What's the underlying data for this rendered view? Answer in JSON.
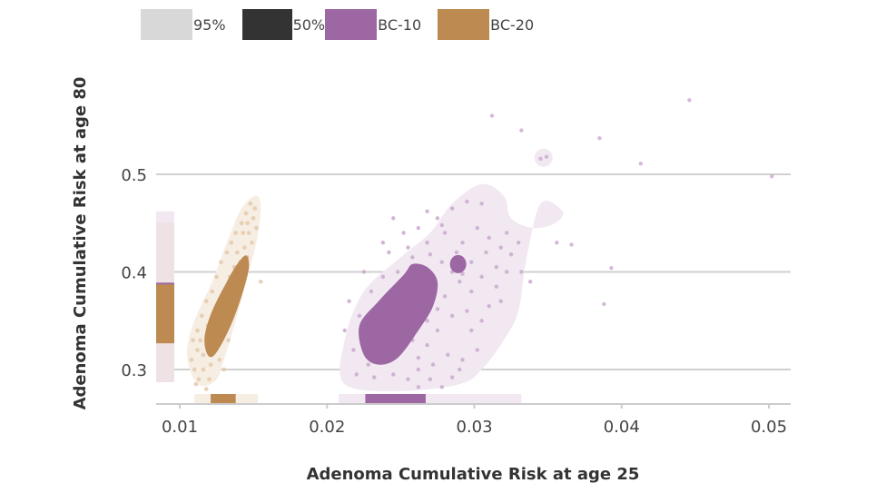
{
  "legend": [
    {
      "label": "95%",
      "color": "#d8d8d8"
    },
    {
      "label": "50%",
      "color": "#333333"
    },
    {
      "label": "BC-10",
      "color": "#9c67a2"
    },
    {
      "label": "BC-20",
      "color": "#bd8a52"
    }
  ],
  "colors": {
    "bc10": "#9c67a2",
    "bc10_light": "#f1e8f2",
    "bc10_point": "#c9a9cd",
    "bc20": "#bd8a52",
    "bc20_light": "#f6ede3",
    "bc20_point": "#e3c9aa",
    "grid": "#d0d0d0",
    "axis": "#cccccc"
  },
  "chart_data": {
    "type": "scatter",
    "title": "",
    "xlabel": "Adenoma Cumulative Risk at age 25",
    "ylabel": "Adenoma Cumulative Risk at age 80",
    "xlim": [
      0.0088,
      0.0514
    ],
    "ylim": [
      0.265,
      0.54
    ],
    "x_ticks": [
      0.01,
      0.02,
      0.03,
      0.04,
      0.05
    ],
    "x_tick_labels": [
      "0.01",
      "0.02",
      "0.03",
      "0.04",
      "0.05"
    ],
    "y_ticks": [
      0.3,
      0.4,
      0.5
    ],
    "y_tick_labels": [
      "0.3",
      "0.4",
      "0.5"
    ],
    "grid": "horizontal",
    "legend_position": "top",
    "series": [
      {
        "name": "BC-10",
        "density_95_region": [
          [
            0.0212,
            0.285
          ],
          [
            0.0212,
            0.33
          ],
          [
            0.0225,
            0.38
          ],
          [
            0.025,
            0.415
          ],
          [
            0.027,
            0.44
          ],
          [
            0.0285,
            0.47
          ],
          [
            0.0305,
            0.49
          ],
          [
            0.032,
            0.478
          ],
          [
            0.0325,
            0.455
          ],
          [
            0.034,
            0.445
          ],
          [
            0.0355,
            0.45
          ],
          [
            0.036,
            0.462
          ],
          [
            0.0345,
            0.47
          ],
          [
            0.0335,
            0.41
          ],
          [
            0.033,
            0.36
          ],
          [
            0.032,
            0.33
          ],
          [
            0.0305,
            0.3
          ],
          [
            0.029,
            0.285
          ],
          [
            0.025,
            0.278
          ]
        ],
        "density_50_region": [
          [
            0.0225,
            0.315
          ],
          [
            0.0222,
            0.345
          ],
          [
            0.0235,
            0.37
          ],
          [
            0.0252,
            0.397
          ],
          [
            0.0258,
            0.408
          ],
          [
            0.0268,
            0.405
          ],
          [
            0.0275,
            0.39
          ],
          [
            0.0272,
            0.365
          ],
          [
            0.0262,
            0.34
          ],
          [
            0.0248,
            0.312
          ],
          [
            0.0235,
            0.305
          ]
        ],
        "density_50_island": {
          "cx": 0.0289,
          "cy": 0.408,
          "r": 0.0006
        },
        "marginal_x_95": [
          0.0208,
          0.0332
        ],
        "marginal_x_50": [
          0.0226,
          0.0267
        ],
        "marginal_y_95": [
          0.287,
          0.462
        ],
        "marginal_y_50": [
          0.327,
          0.389
        ],
        "outliers": [
          [
            0.0349,
            0.518
          ],
          [
            0.0345,
            0.516
          ],
          [
            0.0413,
            0.511
          ],
          [
            0.0385,
            0.537
          ],
          [
            0.0312,
            0.56
          ],
          [
            0.0332,
            0.545
          ],
          [
            0.0446,
            0.576
          ],
          [
            0.0393,
            0.404
          ],
          [
            0.0388,
            0.367
          ],
          [
            0.0356,
            0.43
          ],
          [
            0.0366,
            0.428
          ],
          [
            0.0502,
            0.498
          ]
        ],
        "points": [
          [
            0.0245,
            0.455
          ],
          [
            0.0262,
            0.445
          ],
          [
            0.0275,
            0.455
          ],
          [
            0.0285,
            0.465
          ],
          [
            0.0295,
            0.472
          ],
          [
            0.0305,
            0.47
          ],
          [
            0.028,
            0.44
          ],
          [
            0.0268,
            0.43
          ],
          [
            0.0255,
            0.425
          ],
          [
            0.0242,
            0.42
          ],
          [
            0.0292,
            0.43
          ],
          [
            0.0302,
            0.445
          ],
          [
            0.031,
            0.435
          ],
          [
            0.0318,
            0.425
          ],
          [
            0.0325,
            0.418
          ],
          [
            0.0315,
            0.405
          ],
          [
            0.0305,
            0.395
          ],
          [
            0.0298,
            0.38
          ],
          [
            0.029,
            0.39
          ],
          [
            0.028,
            0.375
          ],
          [
            0.0275,
            0.362
          ],
          [
            0.0285,
            0.355
          ],
          [
            0.0295,
            0.36
          ],
          [
            0.031,
            0.365
          ],
          [
            0.0318,
            0.37
          ],
          [
            0.0275,
            0.34
          ],
          [
            0.0268,
            0.325
          ],
          [
            0.0282,
            0.315
          ],
          [
            0.0292,
            0.31
          ],
          [
            0.0302,
            0.32
          ],
          [
            0.0262,
            0.3
          ],
          [
            0.0255,
            0.29
          ],
          [
            0.027,
            0.29
          ],
          [
            0.0285,
            0.292
          ],
          [
            0.0245,
            0.295
          ],
          [
            0.0232,
            0.292
          ],
          [
            0.022,
            0.295
          ],
          [
            0.0218,
            0.32
          ],
          [
            0.0222,
            0.355
          ],
          [
            0.023,
            0.38
          ],
          [
            0.0238,
            0.395
          ],
          [
            0.0248,
            0.4
          ],
          [
            0.0258,
            0.415
          ],
          [
            0.027,
            0.418
          ],
          [
            0.0278,
            0.41
          ],
          [
            0.0288,
            0.42
          ],
          [
            0.0298,
            0.41
          ],
          [
            0.0308,
            0.42
          ],
          [
            0.0322,
            0.44
          ],
          [
            0.033,
            0.43
          ],
          [
            0.0285,
            0.4
          ],
          [
            0.0292,
            0.398
          ],
          [
            0.0272,
            0.395
          ],
          [
            0.0265,
            0.38
          ],
          [
            0.0255,
            0.37
          ],
          [
            0.0265,
            0.36
          ],
          [
            0.0268,
            0.35
          ],
          [
            0.0258,
            0.33
          ],
          [
            0.0248,
            0.318
          ],
          [
            0.0235,
            0.312
          ],
          [
            0.0228,
            0.34
          ],
          [
            0.0238,
            0.36
          ],
          [
            0.0248,
            0.35
          ],
          [
            0.0255,
            0.34
          ],
          [
            0.0262,
            0.312
          ],
          [
            0.0272,
            0.305
          ],
          [
            0.0298,
            0.34
          ],
          [
            0.0305,
            0.35
          ],
          [
            0.0315,
            0.385
          ],
          [
            0.0322,
            0.4
          ],
          [
            0.0338,
            0.39
          ],
          [
            0.0332,
            0.4
          ],
          [
            0.0278,
            0.448
          ],
          [
            0.0268,
            0.462
          ],
          [
            0.0252,
            0.44
          ],
          [
            0.0238,
            0.43
          ],
          [
            0.0225,
            0.4
          ],
          [
            0.0215,
            0.37
          ],
          [
            0.0212,
            0.34
          ],
          [
            0.0228,
            0.305
          ],
          [
            0.029,
            0.3
          ],
          [
            0.0278,
            0.282
          ],
          [
            0.0262,
            0.282
          ]
        ]
      },
      {
        "name": "BC-20",
        "density_95_region": [
          [
            0.0108,
            0.295
          ],
          [
            0.0105,
            0.32
          ],
          [
            0.011,
            0.35
          ],
          [
            0.0122,
            0.39
          ],
          [
            0.0132,
            0.43
          ],
          [
            0.0142,
            0.465
          ],
          [
            0.0152,
            0.478
          ],
          [
            0.0155,
            0.465
          ],
          [
            0.0152,
            0.43
          ],
          [
            0.0145,
            0.39
          ],
          [
            0.0138,
            0.35
          ],
          [
            0.013,
            0.31
          ],
          [
            0.0125,
            0.29
          ],
          [
            0.0115,
            0.283
          ]
        ],
        "density_50_region": [
          [
            0.0118,
            0.318
          ],
          [
            0.0117,
            0.335
          ],
          [
            0.0122,
            0.36
          ],
          [
            0.0132,
            0.39
          ],
          [
            0.0139,
            0.408
          ],
          [
            0.0145,
            0.417
          ],
          [
            0.0147,
            0.405
          ],
          [
            0.0143,
            0.38
          ],
          [
            0.0136,
            0.35
          ],
          [
            0.0128,
            0.325
          ],
          [
            0.0122,
            0.313
          ]
        ],
        "marginal_x_95": [
          0.011,
          0.0153
        ],
        "marginal_x_50": [
          0.0121,
          0.0138
        ],
        "marginal_y_95": [
          0.287,
          0.451
        ],
        "marginal_y_50": [
          0.325,
          0.389
        ],
        "points": [
          [
            0.011,
            0.3
          ],
          [
            0.0113,
            0.29
          ],
          [
            0.0108,
            0.31
          ],
          [
            0.0112,
            0.32
          ],
          [
            0.0116,
            0.3
          ],
          [
            0.012,
            0.29
          ],
          [
            0.0118,
            0.28
          ],
          [
            0.0109,
            0.33
          ],
          [
            0.0112,
            0.34
          ],
          [
            0.0115,
            0.355
          ],
          [
            0.0118,
            0.37
          ],
          [
            0.0122,
            0.38
          ],
          [
            0.0125,
            0.395
          ],
          [
            0.0128,
            0.41
          ],
          [
            0.0132,
            0.42
          ],
          [
            0.0135,
            0.43
          ],
          [
            0.0138,
            0.44
          ],
          [
            0.0142,
            0.45
          ],
          [
            0.0145,
            0.46
          ],
          [
            0.0148,
            0.47
          ],
          [
            0.015,
            0.455
          ],
          [
            0.0147,
            0.44
          ],
          [
            0.0144,
            0.425
          ],
          [
            0.0141,
            0.41
          ],
          [
            0.0138,
            0.395
          ],
          [
            0.0135,
            0.38
          ],
          [
            0.0131,
            0.36
          ],
          [
            0.0127,
            0.34
          ],
          [
            0.0124,
            0.32
          ],
          [
            0.0121,
            0.305
          ],
          [
            0.013,
            0.3
          ],
          [
            0.0127,
            0.31
          ],
          [
            0.0116,
            0.315
          ],
          [
            0.0114,
            0.33
          ],
          [
            0.0119,
            0.345
          ],
          [
            0.0129,
            0.375
          ],
          [
            0.0134,
            0.395
          ],
          [
            0.0139,
            0.42
          ],
          [
            0.0143,
            0.44
          ],
          [
            0.0146,
            0.45
          ],
          [
            0.0151,
            0.465
          ],
          [
            0.0149,
            0.43
          ],
          [
            0.0146,
            0.415
          ],
          [
            0.0152,
            0.445
          ],
          [
            0.0137,
            0.405
          ],
          [
            0.0126,
            0.365
          ],
          [
            0.012,
            0.34
          ],
          [
            0.0133,
            0.33
          ],
          [
            0.0136,
            0.36
          ],
          [
            0.0141,
            0.39
          ],
          [
            0.0155,
            0.39
          ],
          [
            0.0111,
            0.285
          ]
        ]
      }
    ]
  }
}
